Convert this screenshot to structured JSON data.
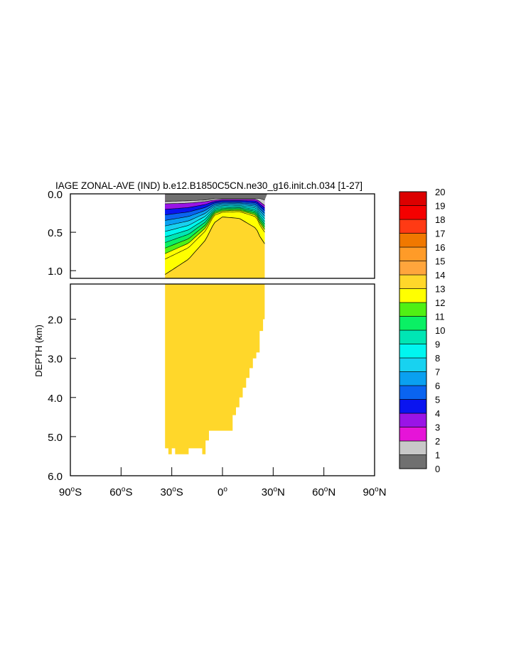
{
  "chart_data": {
    "type": "heatmap",
    "title": "IAGE ZONAL-AVE (IND) b.e12.B1850C5CN.ne30_g16.init.ch.034 [1-27]",
    "ylabel": "DEPTH (km)",
    "xlim": [
      -90,
      90
    ],
    "x_ticks": [
      {
        "value": -90,
        "deg": "90",
        "hemi": "S"
      },
      {
        "value": -60,
        "deg": "60",
        "hemi": "S"
      },
      {
        "value": -30,
        "deg": "30",
        "hemi": "S"
      },
      {
        "value": 0,
        "deg": "0",
        "hemi": ""
      },
      {
        "value": 30,
        "deg": "30",
        "hemi": "N"
      },
      {
        "value": 60,
        "deg": "60",
        "hemi": "N"
      },
      {
        "value": 90,
        "deg": "90",
        "hemi": "N"
      }
    ],
    "upper_panel": {
      "ylim": [
        0,
        1.1
      ],
      "y_ticks": [
        "0.0",
        "0.5",
        "1.0"
      ],
      "y_values": [
        0,
        0.5,
        1.0
      ]
    },
    "lower_panel": {
      "ylim": [
        1.1,
        6.0
      ],
      "y_ticks": [
        "2.0",
        "3.0",
        "4.0",
        "5.0",
        "6.0"
      ],
      "y_values": [
        2,
        3,
        4,
        5,
        6
      ]
    },
    "colorbar": {
      "labels": [
        "0",
        "1",
        "2",
        "3",
        "4",
        "5",
        "6",
        "7",
        "8",
        "9",
        "10",
        "11",
        "12",
        "13",
        "14",
        "15",
        "16",
        "17",
        "18",
        "19",
        "20"
      ],
      "colors": [
        "#707070",
        "#c8c8c8",
        "#e614d8",
        "#9a14e6",
        "#0a14f0",
        "#0a64f0",
        "#0aa0f0",
        "#18d2f0",
        "#00f6f0",
        "#00e6b4",
        "#0af064",
        "#50f014",
        "#ffff00",
        "#ffd72a",
        "#ffa53c",
        "#ff9b28",
        "#f07800",
        "#ff3a14",
        "#f50000",
        "#dc0000",
        "#c80000"
      ]
    },
    "data": {
      "ocean_lat_range": [
        -34,
        25
      ],
      "upper_isolines_km": {
        "lat": [
          -34,
          -20,
          -10,
          -5,
          0,
          10,
          20,
          22,
          25
        ],
        "age_13": [
          1.05,
          0.85,
          0.6,
          0.38,
          0.3,
          0.32,
          0.45,
          0.55,
          0.65
        ],
        "age_12": [
          0.85,
          0.7,
          0.48,
          0.28,
          0.24,
          0.23,
          0.3,
          0.4,
          0.5
        ],
        "age_2": [
          0.13,
          0.12,
          0.1,
          0.08,
          0.07,
          0.07,
          0.07,
          0.1,
          0.15
        ],
        "age_1": [
          0.1,
          0.09,
          0.08,
          0.06,
          0.06,
          0.06,
          0.06,
          0.06,
          0.08
        ]
      },
      "bottom_depth_km": {
        "lat": [
          -34,
          -32,
          -30,
          -28,
          -26,
          -24,
          -20,
          -12,
          -10,
          -8,
          0,
          6,
          8,
          10,
          12,
          14,
          16,
          18,
          20,
          22,
          24,
          25
        ],
        "depth": [
          5.45,
          5.3,
          5.45,
          5.3,
          5.45,
          5.45,
          5.45,
          5.3,
          5.45,
          5.1,
          4.85,
          4.85,
          4.45,
          4.25,
          4.0,
          3.75,
          3.5,
          3.25,
          3.0,
          2.85,
          2.3,
          2.0
        ]
      }
    }
  }
}
